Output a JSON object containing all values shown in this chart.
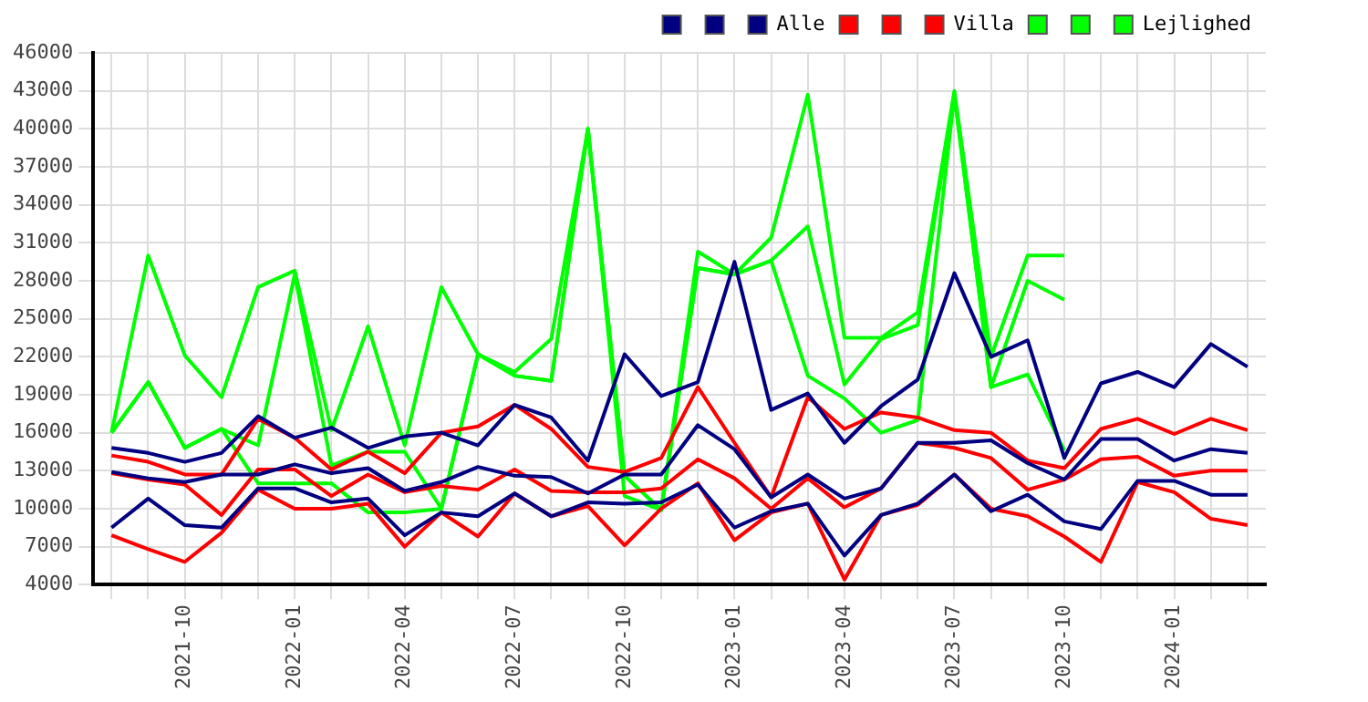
{
  "chart_data": {
    "type": "line",
    "categories": [
      null,
      null,
      "2021-10",
      null,
      null,
      "2022-01",
      null,
      null,
      "2022-04",
      null,
      null,
      "2022-07",
      null,
      null,
      "2022-10",
      null,
      null,
      "2023-01",
      null,
      null,
      "2023-04",
      null,
      null,
      "2023-07",
      null,
      null,
      "2023-10",
      null,
      null,
      "2024-01",
      null,
      null
    ],
    "ylim": [
      4000,
      46000
    ],
    "yticks": [
      4000,
      7000,
      10000,
      13000,
      16000,
      19000,
      22000,
      25000,
      28000,
      31000,
      34000,
      37000,
      40000,
      43000,
      46000
    ],
    "grid": true,
    "legend": "top right",
    "marker": "none",
    "line_style": "solid",
    "series": [
      {
        "color": "#000080",
        "values": [
          14800,
          14400,
          13700,
          14400,
          17300,
          15600,
          16400,
          14800,
          15700,
          16000,
          15000,
          18200,
          17200,
          13800,
          22200,
          18900,
          20000,
          29500,
          17800,
          19100,
          15200,
          18100,
          20200,
          28600,
          22000,
          23300,
          14000,
          19900,
          20800,
          19600,
          23000,
          21200
        ]
      },
      {
        "color": "#000080",
        "values": [
          12900,
          12400,
          12100,
          12700,
          12700,
          13500,
          12800,
          13200,
          11400,
          12100,
          13300,
          12600,
          12500,
          11200,
          12700,
          12700,
          16600,
          14700,
          10900,
          12700,
          10800,
          11600,
          15200,
          15200,
          15400,
          13600,
          12300,
          15500,
          15500,
          13800,
          14700,
          14400
        ]
      },
      {
        "name": "Alle",
        "color": "#000080",
        "values": [
          8500,
          10800,
          8700,
          8500,
          11600,
          11600,
          10500,
          10800,
          7900,
          9700,
          9400,
          11200,
          9400,
          10500,
          10400,
          10500,
          11900,
          8500,
          9800,
          10400,
          6300,
          9500,
          10400,
          12700,
          9800,
          11100,
          9000,
          8400,
          12200,
          12200,
          11100,
          11100
        ]
      },
      {
        "color": "#ff0000",
        "values": [
          14200,
          13700,
          12700,
          12700,
          17100,
          15600,
          13100,
          14500,
          12800,
          16000,
          16500,
          18200,
          16300,
          13300,
          12900,
          14000,
          19600,
          15200,
          10900,
          18800,
          16300,
          17600,
          17200,
          16200,
          16000,
          13800,
          13200,
          16300,
          17100,
          15900,
          17100,
          16200
        ]
      },
      {
        "color": "#ff0000",
        "values": [
          12800,
          12300,
          11900,
          9500,
          13100,
          13100,
          11000,
          12700,
          11300,
          11800,
          11500,
          13100,
          11400,
          11300,
          11300,
          11600,
          13900,
          12400,
          10000,
          12400,
          10100,
          11600,
          15200,
          14800,
          14000,
          11500,
          12300,
          13900,
          14100,
          12600,
          13000,
          13000
        ]
      },
      {
        "name": "Villa",
        "color": "#ff0000",
        "values": [
          7900,
          6800,
          5800,
          8100,
          11500,
          10000,
          10000,
          10400,
          7000,
          9700,
          7800,
          11200,
          9400,
          10200,
          7100,
          10000,
          12000,
          7500,
          9700,
          10400,
          4400,
          9500,
          10300,
          12700,
          10000,
          9400,
          7800,
          5800,
          12100,
          11300,
          9200,
          8700
        ]
      },
      {
        "color": "#00ff00",
        "values": [
          16000,
          30000,
          22100,
          18800,
          27500,
          28800,
          16200,
          24400,
          15000,
          27500,
          22200,
          20800,
          23400,
          40000,
          12600,
          9900,
          30300,
          28500,
          31400,
          42700,
          23500,
          23500,
          25500,
          43000,
          22000,
          30000,
          30000,
          null,
          null,
          null,
          null,
          null
        ]
      },
      {
        "color": "#00ff00",
        "values": [
          16000,
          20000,
          14800,
          16300,
          15000,
          28500,
          13400,
          14500,
          14500,
          10000,
          22200,
          20500,
          20100,
          40000,
          11000,
          9900,
          29000,
          28500,
          29600,
          32300,
          19800,
          23400,
          24500,
          42700,
          19600,
          28000,
          26500,
          null,
          null,
          null,
          null,
          null
        ]
      },
      {
        "name": "Lejlighed",
        "color": "#00ff00",
        "values": [
          16000,
          20000,
          14800,
          16300,
          12000,
          12000,
          12000,
          9700,
          9700,
          10000,
          22200,
          20500,
          20100,
          40000,
          12600,
          9900,
          29000,
          28500,
          29600,
          20500,
          18700,
          16000,
          17000,
          42700,
          19600,
          20600,
          14600,
          null,
          null,
          null,
          null,
          null
        ]
      }
    ]
  }
}
